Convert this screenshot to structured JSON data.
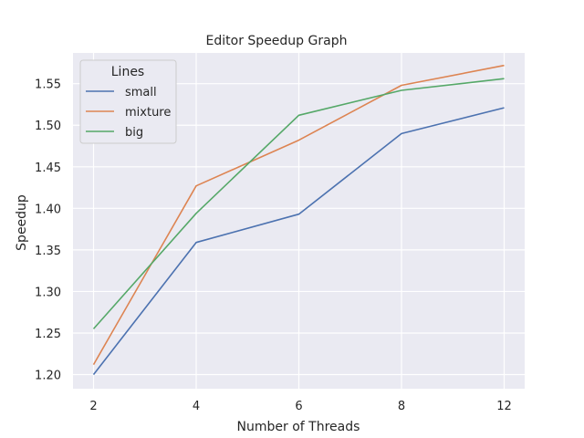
{
  "chart_data": {
    "type": "line",
    "title": "Editor Speedup Graph",
    "xlabel": "Number of Threads",
    "ylabel": "Speedup",
    "categories": [
      "2",
      "4",
      "6",
      "8",
      "12"
    ],
    "ylim": [
      1.183,
      1.587
    ],
    "yticks": [
      1.2,
      1.25,
      1.3,
      1.35,
      1.4,
      1.45,
      1.5,
      1.55
    ],
    "ytick_labels": [
      "1.20",
      "1.25",
      "1.30",
      "1.35",
      "1.40",
      "1.45",
      "1.50",
      "1.55"
    ],
    "grid": true,
    "legend": {
      "title": "Lines",
      "placement": "top-left"
    },
    "series": [
      {
        "name": "small",
        "color": "#4c72b0",
        "values": [
          1.2,
          1.359,
          1.393,
          1.49,
          1.521
        ]
      },
      {
        "name": "mixture",
        "color": "#dd8452",
        "values": [
          1.212,
          1.427,
          1.482,
          1.548,
          1.572
        ]
      },
      {
        "name": "big",
        "color": "#55a868",
        "values": [
          1.255,
          1.394,
          1.512,
          1.542,
          1.556
        ]
      }
    ]
  }
}
